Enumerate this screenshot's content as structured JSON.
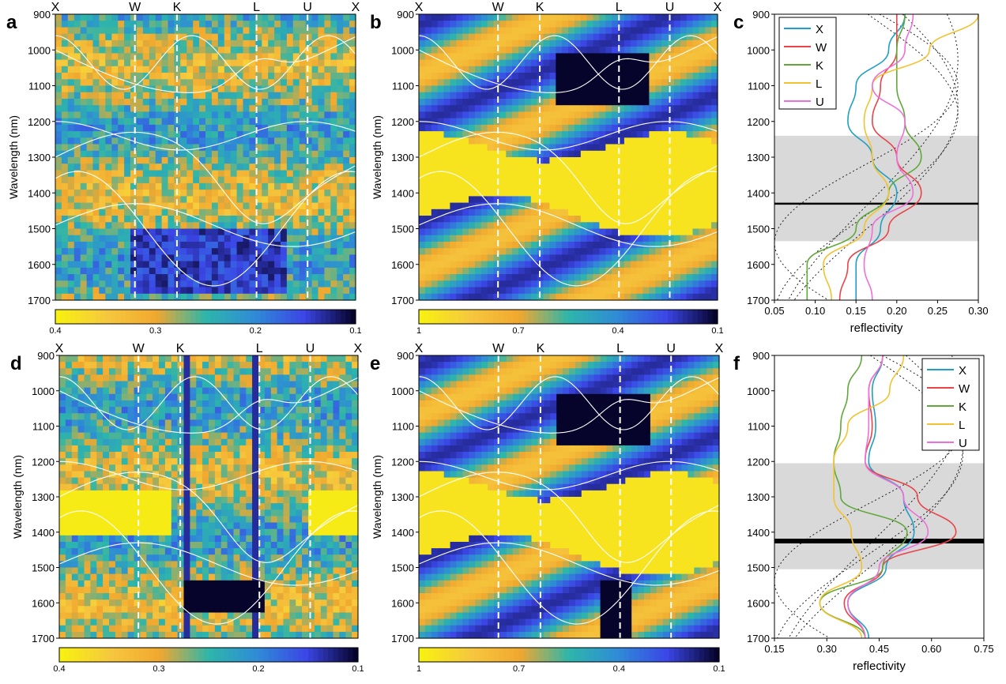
{
  "colors": {
    "map_stops": [
      "#f7f011",
      "#f6c83e",
      "#f1a82f",
      "#2db6aa",
      "#2f8bd6",
      "#3b46e6",
      "#07042c"
    ],
    "band": "#ffffff",
    "line_X": "#1f9fc4",
    "line_W": "#e8444a",
    "line_K": "#5fa83a",
    "line_L": "#f2c230",
    "line_U": "#ee6fd9",
    "shade": "#d9d9d9",
    "dotted": "#222222"
  },
  "panels": [
    {
      "letter": "a",
      "kind": "map",
      "ylabel": "Wavelength (nm)",
      "ylim": [
        900,
        1700
      ],
      "yticks": [
        "900",
        "1000",
        "1100",
        "1200",
        "1300",
        "1400",
        "1500",
        "1600",
        "1700"
      ],
      "kpoints": [
        "X",
        "W",
        "K",
        "L",
        "U",
        "X"
      ],
      "colorbar": {
        "ticks": [
          "0.4",
          "0.3",
          "0.2",
          "0.1"
        ],
        "values": [
          0.4,
          0.3,
          0.2,
          0.1
        ]
      }
    },
    {
      "letter": "b",
      "kind": "map",
      "ylabel": "Wavelength (nm)",
      "ylim": [
        900,
        1700
      ],
      "yticks": [
        "900",
        "1000",
        "1100",
        "1200",
        "1300",
        "1400",
        "1500",
        "1600",
        "1700"
      ],
      "kpoints": [
        "X",
        "W",
        "K",
        "L",
        "U",
        "X"
      ],
      "colorbar": {
        "ticks": [
          "1",
          "0.7",
          "0.4",
          "0.1"
        ],
        "values": [
          1,
          0.7,
          0.4,
          0.1
        ]
      }
    },
    {
      "letter": "c",
      "kind": "spectra",
      "xlabel": "reflectivity",
      "xlim": [
        0.05,
        0.3
      ],
      "xticks": [
        "0.05",
        "0.10",
        "0.15",
        "0.20",
        "0.25",
        "0.30"
      ],
      "ylim": [
        900,
        1700
      ],
      "yticks": [
        "900",
        "1000",
        "1100",
        "1200",
        "1300",
        "1400",
        "1500",
        "1600",
        "1700"
      ],
      "legend": [
        "X",
        "W",
        "K",
        "L",
        "U"
      ],
      "legend_placement": "top-left",
      "shade_range": [
        1240,
        1535
      ],
      "marker_line": 1430
    },
    {
      "letter": "d",
      "kind": "map",
      "ylabel": "Wavelength (nm)",
      "ylim": [
        900,
        1700
      ],
      "yticks": [
        "900",
        "1000",
        "1100",
        "1200",
        "1300",
        "1400",
        "1500",
        "1600",
        "1700"
      ],
      "kpoints": [
        "X",
        "W",
        "K",
        "L",
        "U",
        "X"
      ],
      "colorbar": {
        "ticks": [
          "0.4",
          "0.3",
          "0.2",
          "0.1"
        ],
        "values": [
          0.4,
          0.3,
          0.2,
          0.1
        ]
      }
    },
    {
      "letter": "e",
      "kind": "map",
      "ylabel": "Wavelength (nm)",
      "ylim": [
        900,
        1700
      ],
      "yticks": [
        "900",
        "1000",
        "1100",
        "1200",
        "1300",
        "1400",
        "1500",
        "1600",
        "1700"
      ],
      "kpoints": [
        "X",
        "W",
        "K",
        "L",
        "U",
        "X"
      ],
      "colorbar": {
        "ticks": [
          "1",
          "0.7",
          "0.4",
          "0.1"
        ],
        "values": [
          1,
          0.7,
          0.4,
          0.1
        ]
      }
    },
    {
      "letter": "f",
      "kind": "spectra",
      "xlabel": "reflectivity",
      "xlim": [
        0.15,
        0.75
      ],
      "xticks": [
        "0.15",
        "0.30",
        "0.45",
        "0.60",
        "0.75"
      ],
      "ylim": [
        900,
        1700
      ],
      "yticks": [
        "900",
        "1000",
        "1100",
        "1200",
        "1300",
        "1400",
        "1500",
        "1600",
        "1700"
      ],
      "legend": [
        "X",
        "W",
        "K",
        "L",
        "U"
      ],
      "legend_placement": "top-right",
      "shade_range": [
        1205,
        1505
      ],
      "marker_line": 1425
    }
  ],
  "chart_data": [
    {
      "type": "heatmap",
      "panel": "a",
      "xlabel": "",
      "ylabel": "Wavelength (nm)",
      "ylim": [
        900,
        1700
      ],
      "x_categories": [
        "X",
        "W",
        "K",
        "L",
        "U",
        "X"
      ],
      "colorbar_range": [
        0.1,
        0.4
      ]
    },
    {
      "type": "heatmap",
      "panel": "b",
      "xlabel": "",
      "ylabel": "Wavelength (nm)",
      "ylim": [
        900,
        1700
      ],
      "x_categories": [
        "X",
        "W",
        "K",
        "L",
        "U",
        "X"
      ],
      "colorbar_range": [
        0.1,
        1
      ]
    },
    {
      "type": "line",
      "panel": "c",
      "xlabel": "reflectivity",
      "ylabel": "",
      "xlim": [
        0.05,
        0.3
      ],
      "ylim": [
        900,
        1700
      ],
      "y": [
        900,
        1000,
        1100,
        1200,
        1300,
        1400,
        1500,
        1600,
        1700
      ],
      "series": [
        {
          "name": "X",
          "values": [
            0.21,
            0.19,
            0.15,
            0.14,
            0.17,
            0.2,
            0.18,
            0.15,
            0.15
          ]
        },
        {
          "name": "W",
          "values": [
            0.2,
            0.2,
            0.18,
            0.17,
            0.2,
            0.23,
            0.19,
            0.14,
            0.13
          ]
        },
        {
          "name": "K",
          "values": [
            0.21,
            0.2,
            0.2,
            0.21,
            0.23,
            0.19,
            0.15,
            0.09,
            0.09
          ]
        },
        {
          "name": "L",
          "values": [
            0.3,
            0.24,
            0.17,
            0.16,
            0.17,
            0.19,
            0.16,
            0.11,
            0.12
          ]
        },
        {
          "name": "U",
          "values": [
            0.22,
            0.21,
            0.17,
            0.21,
            0.2,
            0.22,
            0.17,
            0.16,
            0.17
          ]
        }
      ]
    },
    {
      "type": "heatmap",
      "panel": "d",
      "xlabel": "",
      "ylabel": "Wavelength (nm)",
      "ylim": [
        900,
        1700
      ],
      "x_categories": [
        "X",
        "W",
        "K",
        "L",
        "U",
        "X"
      ],
      "colorbar_range": [
        0.1,
        0.4
      ]
    },
    {
      "type": "heatmap",
      "panel": "e",
      "xlabel": "",
      "ylabel": "Wavelength (nm)",
      "ylim": [
        900,
        1700
      ],
      "x_categories": [
        "X",
        "W",
        "K",
        "L",
        "U",
        "X"
      ],
      "colorbar_range": [
        0.1,
        1
      ]
    },
    {
      "type": "line",
      "panel": "f",
      "xlabel": "reflectivity",
      "ylabel": "",
      "xlim": [
        0.15,
        0.75
      ],
      "ylim": [
        900,
        1700
      ],
      "y": [
        900,
        1000,
        1100,
        1200,
        1300,
        1400,
        1500,
        1600,
        1700
      ],
      "series": [
        {
          "name": "X",
          "values": [
            0.46,
            0.43,
            0.44,
            0.42,
            0.52,
            0.55,
            0.47,
            0.36,
            0.42
          ]
        },
        {
          "name": "W",
          "values": [
            0.46,
            0.42,
            0.43,
            0.41,
            0.56,
            0.67,
            0.46,
            0.35,
            0.41
          ]
        },
        {
          "name": "K",
          "values": [
            0.4,
            0.36,
            0.34,
            0.32,
            0.34,
            0.53,
            0.46,
            0.28,
            0.41
          ]
        },
        {
          "name": "L",
          "values": [
            0.52,
            0.48,
            0.36,
            0.32,
            0.32,
            0.37,
            0.4,
            0.28,
            0.4
          ]
        },
        {
          "name": "U",
          "values": [
            0.46,
            0.42,
            0.42,
            0.41,
            0.52,
            0.59,
            0.45,
            0.36,
            0.41
          ]
        }
      ]
    }
  ]
}
